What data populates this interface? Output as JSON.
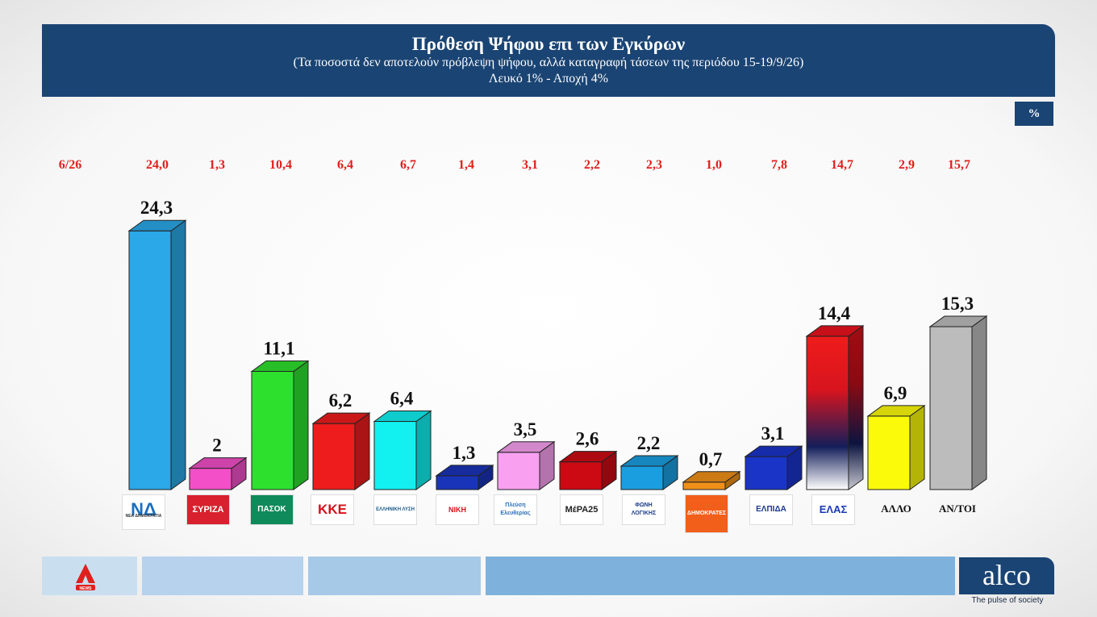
{
  "header": {
    "title": "Πρόθεση Ψήφου επι των Εγκύρων",
    "subtitle": "(Τα ποσοστά δεν αποτελούν πρόβλεψη ψήφου, αλλά καταγραφή τάσεων της περιόδου  15-19/9/26)",
    "note": "Λευκό 1% - Αποχή 4%"
  },
  "unit_badge": "%",
  "chart_data": {
    "type": "bar",
    "title": "Πρόθεση Ψήφου επι των Εγκύρων",
    "comparison_label": "6/26",
    "categories": [
      "ΝΔ",
      "ΣΥΡΙΖΑ",
      "ΠΑΣΟΚ",
      "ΚΚΕ",
      "ΕΛΛΗΝΙΚΗ ΛΥΣΗ",
      "ΝΙΚΗ",
      "Πλεύση Ελευθερίας",
      "ΜέΡΑ25",
      "ΦΩΝΗ ΛΟΓΙΚΗΣ",
      "ΔΗΜΟΚΡΑΤΕΣ",
      "ΕΛΠΙΔΑ",
      "ΕΛΑΣ",
      "ΑΛΛΟ",
      "ΑΝ/ΤΟΙ"
    ],
    "series": [
      {
        "values": [
          24.3,
          2,
          11.1,
          6.2,
          6.4,
          1.3,
          3.5,
          2.6,
          2.2,
          0.7,
          3.1,
          14.4,
          6.9,
          15.3
        ],
        "labels": [
          "24,3",
          "2",
          "11,1",
          "6,2",
          "6,4",
          "1,3",
          "3,5",
          "2,6",
          "2,2",
          "0,7",
          "3,1",
          "14,4",
          "6,9",
          "15,3"
        ]
      },
      {
        "name": "6/26",
        "values": [
          24.0,
          1.3,
          10.4,
          6.4,
          6.7,
          1.4,
          3.1,
          2.2,
          2.3,
          1.0,
          7.8,
          14.7,
          2.9,
          15.7
        ],
        "labels": [
          "24,0",
          "1,3",
          "10,4",
          "6,4",
          "6,7",
          "1,4",
          "3,1",
          "2,2",
          "2,3",
          "1,0",
          "7,8",
          "14,7",
          "2,9",
          "15,7"
        ]
      }
    ],
    "colors": [
      "#2aa8e8",
      "#f24fc8",
      "#2ee02e",
      "#ee1c1c",
      "#12f0f0",
      "#1a34b8",
      "#f9a0f0",
      "#cc0a14",
      "#1a9ee0",
      "#f09018",
      "#1a34c8",
      "gradient-red-navy",
      "#fafa0a",
      "#bcbcbc"
    ],
    "ylim": [
      0,
      26
    ]
  },
  "logos": {
    "nd": "ΝΔ",
    "nd_sub": "ΝΕΑ ΔΗΜΟΚΡΑΤΙΑ",
    "syriza": "ΣΥΡΙΖΑ",
    "pasok": "ΠΑΣΟΚ",
    "kke": "ΚΚΕ",
    "elliniki_lysi": "ΕΛΛΗΝΙΚΗ ΛΥΣΗ",
    "niki": "ΝΙΚΗ",
    "plefsi": "Πλεύση Ελευθερίας",
    "mera25": "ΜέΡΑ25",
    "foni_logikis": "ΦΩΝΗ ΛΟΓΙΚΗΣ",
    "dimokrates": "ΔΗΜΟΚΡΑΤΕΣ",
    "elpida": "ΕΛΠΙΔΑ",
    "elas": "ΕΛΑΣ",
    "allo": "ΑΛΛΟ",
    "antoi": "ΑΝ/ΤΟΙ"
  },
  "footer": {
    "alpha_logo": "ALPHA NEWS",
    "brand": "alco",
    "tagline": "The pulse of society"
  }
}
